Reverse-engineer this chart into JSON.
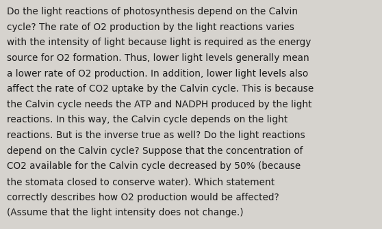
{
  "background_color": "#d6d3ce",
  "text_color": "#1a1a1a",
  "font_size": 9.8,
  "font_family": "DejaVu Sans",
  "text": "Do the light reactions of photosynthesis depend on the Calvin\ncycle? The rate of O2 production by the light reactions varies\nwith the intensity of light because light is required as the energy\nsource for O2 formation. Thus, lower light levels generally mean\na lower rate of O2 production. In addition, lower light levels also\naffect the rate of CO2 uptake by the Calvin cycle. This is because\nthe Calvin cycle needs the ATP and NADPH produced by the light\nreactions. In this way, the Calvin cycle depends on the light\nreactions. But is the inverse true as well? Do the light reactions\ndepend on the Calvin cycle? Suppose that the concentration of\nCO2 available for the Calvin cycle decreased by 50% (because\nthe stomata closed to conserve water). Which statement\ncorrectly describes how O2 production would be affected?\n(Assume that the light intensity does not change.)"
}
